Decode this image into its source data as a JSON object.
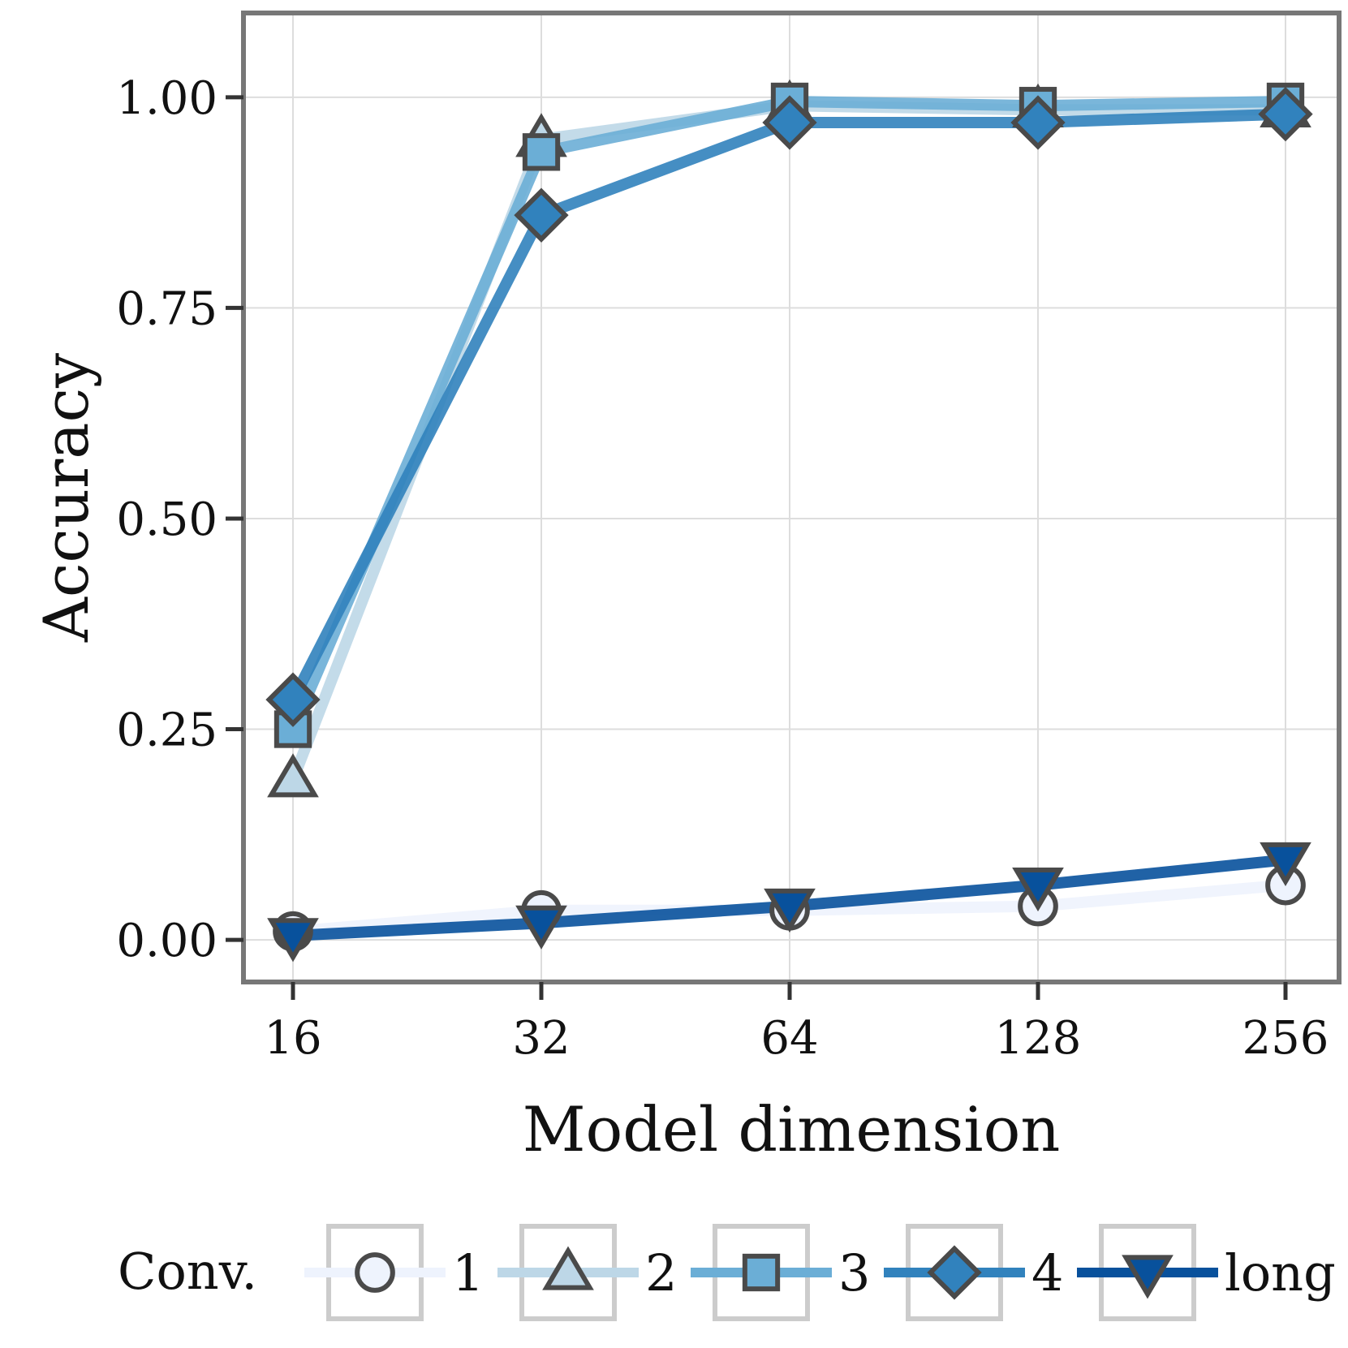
{
  "chart_data": {
    "type": "line",
    "xlabel": "Model dimension",
    "ylabel": "Accuracy",
    "categories": [
      "16",
      "32",
      "64",
      "128",
      "256"
    ],
    "ylim": [
      -0.05,
      1.1
    ],
    "yticks": [
      0.0,
      0.25,
      0.5,
      0.75,
      1.0
    ],
    "ytick_labels": [
      "0.00",
      "0.25",
      "0.50",
      "0.75",
      "1.00"
    ],
    "grid": true,
    "legend": {
      "title": "Conv.",
      "placement": "bottom",
      "entries": [
        "1",
        "2",
        "3",
        "4",
        "long"
      ]
    },
    "series": [
      {
        "name": "1",
        "marker": "circle",
        "color": "#eef3fd",
        "values": [
          0.01,
          0.035,
          0.035,
          0.04,
          0.065
        ]
      },
      {
        "name": "2",
        "marker": "triangle-up",
        "color": "#bdd7e7",
        "values": [
          0.19,
          0.95,
          0.99,
          0.985,
          0.985
        ]
      },
      {
        "name": "3",
        "marker": "square",
        "color": "#6baed6",
        "values": [
          0.25,
          0.935,
          0.995,
          0.99,
          0.995
        ]
      },
      {
        "name": "4",
        "marker": "diamond",
        "color": "#3182bd",
        "values": [
          0.285,
          0.86,
          0.97,
          0.97,
          0.98
        ]
      },
      {
        "name": "long",
        "marker": "triangle-down",
        "color": "#08519c",
        "values": [
          0.005,
          0.02,
          0.04,
          0.065,
          0.095
        ]
      }
    ]
  }
}
